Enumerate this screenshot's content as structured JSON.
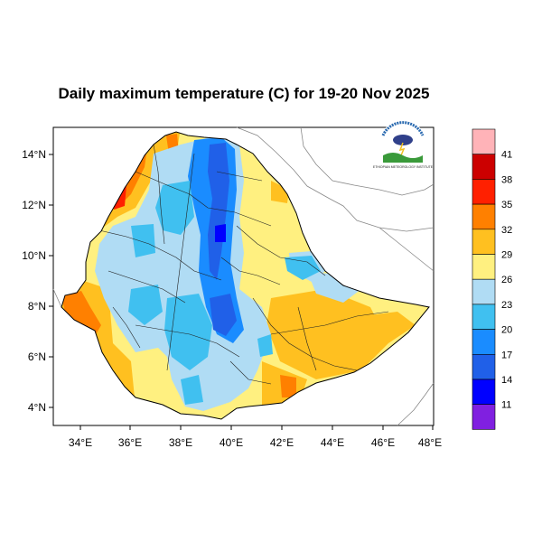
{
  "title": "Daily maximum temperature (C) for 19-20 Nov 2025",
  "x_ticks": [
    "34°E",
    "36°E",
    "38°E",
    "40°E",
    "42°E",
    "44°E",
    "46°E",
    "48°E"
  ],
  "y_ticks": [
    "14°N",
    "12°N",
    "10°N",
    "8°N",
    "6°N",
    "4°N"
  ],
  "colorbar": {
    "labels": [
      "41",
      "38",
      "35",
      "32",
      "29",
      "26",
      "23",
      "20",
      "17",
      "14",
      "11"
    ],
    "colors": [
      "#ffb3b8",
      "#cc0000",
      "#ff2000",
      "#ff8000",
      "#ffc020",
      "#fff080",
      "#b0dcf4",
      "#40c0f0",
      "#1a8cff",
      "#2060e8",
      "#0000ff",
      "#8020e0"
    ]
  },
  "logo_text": "ETHIOPIAN METEOROLOGY INSTITUTE",
  "colors": {
    "warm_bg": "#fff080",
    "cool": "#b0dcf4",
    "blue": "#1a8cff",
    "deep_blue": "#2060e8",
    "orange": "#ffc020",
    "dark_orange": "#ff8000",
    "red": "#ff2000"
  }
}
